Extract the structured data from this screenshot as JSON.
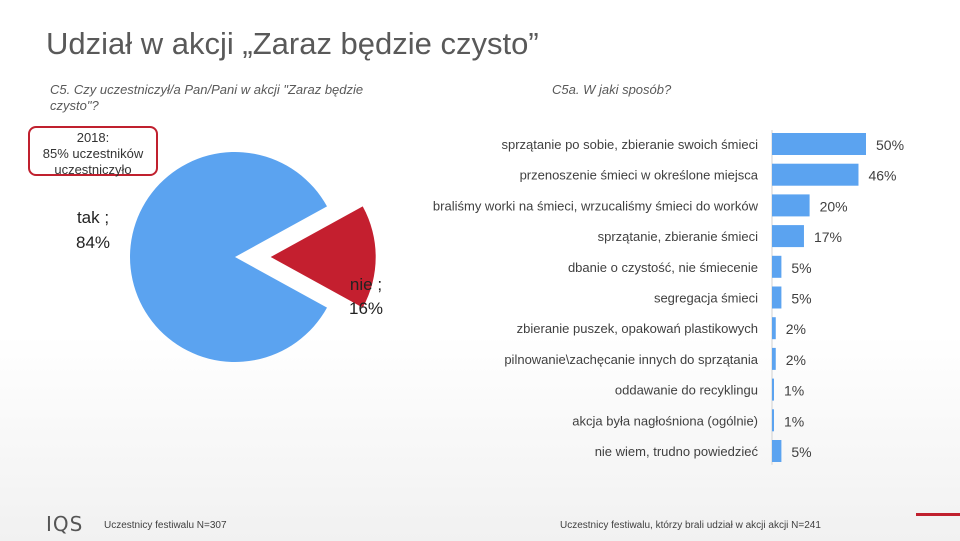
{
  "title": "Udział w akcji „Zaraz będzie czysto”",
  "left_question": "C5. Czy uczestniczył/a Pan/Pani w akcji \"Zaraz będzie czysto\"?",
  "right_question": "C5a. W jaki sposób?",
  "note": {
    "line1": "2018:",
    "line2": "85% uczestników",
    "line3": "uczestniczyło"
  },
  "footer_left": "Uczestnicy festiwalu N=307",
  "footer_right": "Uczestnicy festiwalu, którzy brali udział w akcji akcji N=241",
  "logo_text": "IQS",
  "colors": {
    "blue": "#5ba3f0",
    "red": "#c41f2f",
    "accent": "#c0202e"
  },
  "chart_data": [
    {
      "type": "pie",
      "categories": [
        "tak",
        "nie"
      ],
      "values": [
        84,
        16
      ],
      "labels": [
        "tak ;",
        "nie ;"
      ],
      "value_labels": [
        "84%",
        "16%"
      ],
      "exploded": "nie"
    },
    {
      "type": "bar",
      "orientation": "horizontal",
      "categories": [
        "sprzątanie po sobie, zbieranie swoich śmieci",
        "przenoszenie śmieci w określone miejsca",
        "braliśmy worki na śmieci, wrzucaliśmy śmieci do worków",
        "sprzątanie, zbieranie śmieci",
        "dbanie o czystość, nie śmiecenie",
        "segregacja śmieci",
        "zbieranie puszek, opakowań plastikowych",
        "pilnowanie\\zachęcanie innych do sprzątania",
        "oddawanie do recyklingu",
        "akcja była nagłośniona (ogólnie)",
        "nie wiem, trudno powiedzieć"
      ],
      "values": [
        50,
        46,
        20,
        17,
        5,
        5,
        2,
        2,
        1,
        1,
        5
      ],
      "value_labels": [
        "50%",
        "46%",
        "20%",
        "17%",
        "5%",
        "5%",
        "2%",
        "2%",
        "1%",
        "1%",
        "5%"
      ],
      "xlim": [
        0,
        55
      ]
    }
  ]
}
